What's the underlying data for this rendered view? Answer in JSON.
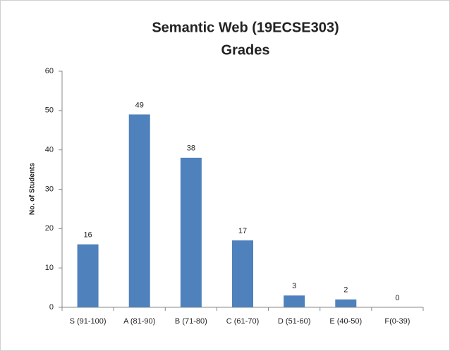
{
  "chart_data": {
    "type": "bar",
    "title": [
      "Semantic Web (19ECSE303)",
      "Grades"
    ],
    "ylabel": "No. of Students",
    "categories": [
      "S  (91-100)",
      "A (81-90)",
      "B (71-80)",
      "C (61-70)",
      "D (51-60)",
      "E (40-50)",
      "F(0-39)"
    ],
    "values": [
      16,
      49,
      38,
      17,
      3,
      2,
      0
    ],
    "color": "#4f81bd",
    "ylim": [
      0,
      60
    ],
    "yticks": [
      0,
      10,
      20,
      30,
      40,
      50,
      60
    ],
    "grid": false
  }
}
